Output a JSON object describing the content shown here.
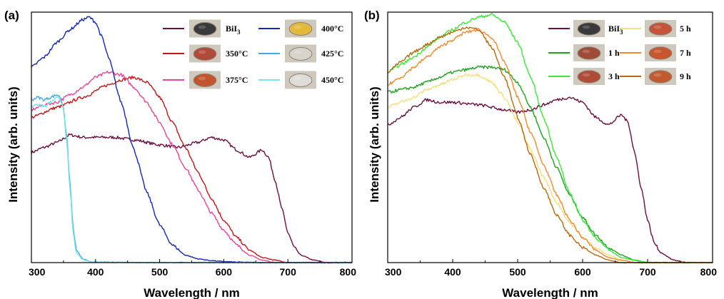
{
  "chart_data": [
    {
      "panel_label": "(a)",
      "type": "line",
      "xlabel": "Wavelength / nm",
      "ylabel": "Intensity (arb. units)",
      "xlim": [
        300,
        800
      ],
      "ylim": [
        0,
        1.0
      ],
      "xticks": [
        300,
        400,
        500,
        600,
        700,
        800
      ],
      "legend_placement": "top-right",
      "series": [
        {
          "name": "BiI3",
          "label_main": "BiI",
          "label_sub": "3",
          "color": "#6a1040",
          "swatch": "#3a3a3a",
          "x": [
            300,
            320,
            340,
            360,
            380,
            400,
            430,
            460,
            500,
            530,
            560,
            580,
            600,
            620,
            640,
            660,
            670,
            680,
            690,
            700,
            710,
            720,
            740,
            760,
            780,
            800
          ],
          "y": [
            0.44,
            0.46,
            0.48,
            0.51,
            0.5,
            0.5,
            0.5,
            0.49,
            0.47,
            0.46,
            0.48,
            0.5,
            0.49,
            0.45,
            0.42,
            0.45,
            0.42,
            0.33,
            0.22,
            0.12,
            0.06,
            0.03,
            0.01,
            0.0,
            0.0,
            0.0
          ]
        },
        {
          "name": "350°C",
          "color": "#c01818",
          "swatch": "#b04a3a",
          "x": [
            300,
            340,
            380,
            420,
            440,
            460,
            480,
            500,
            520,
            540,
            560,
            580,
            600,
            620,
            640,
            660,
            680,
            700,
            740,
            800
          ],
          "y": [
            0.58,
            0.62,
            0.66,
            0.71,
            0.73,
            0.74,
            0.72,
            0.66,
            0.56,
            0.46,
            0.36,
            0.26,
            0.17,
            0.1,
            0.05,
            0.02,
            0.01,
            0.0,
            0.0,
            0.0
          ]
        },
        {
          "name": "375°C",
          "color": "#e8469a",
          "swatch": "#c2542e",
          "x": [
            300,
            320,
            340,
            360,
            380,
            400,
            420,
            440,
            460,
            480,
            500,
            520,
            540,
            560,
            580,
            600,
            620,
            640,
            660,
            680,
            700,
            740,
            800
          ],
          "y": [
            0.61,
            0.63,
            0.64,
            0.67,
            0.7,
            0.74,
            0.76,
            0.75,
            0.7,
            0.64,
            0.56,
            0.47,
            0.38,
            0.29,
            0.2,
            0.13,
            0.07,
            0.03,
            0.01,
            0.0,
            0.0,
            0.0,
            0.0
          ]
        },
        {
          "name": "400°C",
          "color": "#1428b0",
          "swatch": "#e3b93a",
          "x": [
            300,
            320,
            340,
            360,
            380,
            390,
            400,
            410,
            420,
            440,
            460,
            480,
            500,
            520,
            540,
            560,
            580,
            600,
            620,
            640,
            660,
            700,
            800
          ],
          "y": [
            0.78,
            0.82,
            0.88,
            0.93,
            0.97,
            0.98,
            0.96,
            0.9,
            0.82,
            0.64,
            0.45,
            0.28,
            0.15,
            0.07,
            0.03,
            0.015,
            0.008,
            0.004,
            0.002,
            0.001,
            0.0,
            0.0,
            0.0
          ]
        },
        {
          "name": "425°C",
          "color": "#4aa8e8",
          "swatch": "#d8d4cc",
          "x": [
            300,
            310,
            320,
            330,
            340,
            345,
            350,
            355,
            360,
            365,
            370,
            380,
            390,
            400,
            500,
            600,
            700,
            800
          ],
          "y": [
            0.65,
            0.66,
            0.65,
            0.66,
            0.67,
            0.66,
            0.62,
            0.5,
            0.32,
            0.14,
            0.05,
            0.015,
            0.005,
            0.002,
            0.0,
            0.0,
            0.0,
            0.0
          ]
        },
        {
          "name": "450°C",
          "color": "#7ae6f0",
          "swatch": "#e0ddd8",
          "x": [
            300,
            310,
            320,
            330,
            340,
            345,
            350,
            355,
            360,
            365,
            370,
            380,
            390,
            400,
            500,
            600,
            700,
            800
          ],
          "y": [
            0.62,
            0.63,
            0.62,
            0.64,
            0.66,
            0.65,
            0.61,
            0.48,
            0.3,
            0.12,
            0.04,
            0.012,
            0.004,
            0.001,
            0.0,
            0.0,
            0.0,
            0.0
          ]
        }
      ]
    },
    {
      "panel_label": "(b)",
      "type": "line",
      "xlabel": "Wavelength / nm",
      "ylabel": "Intensity (arb. units)",
      "xlim": [
        300,
        800
      ],
      "ylim": [
        0,
        1.0
      ],
      "xticks": [
        300,
        400,
        500,
        600,
        700,
        800
      ],
      "legend_placement": "top-right",
      "series": [
        {
          "name": "BiI3",
          "label_main": "BiI",
          "label_sub": "3",
          "color": "#6a1040",
          "swatch": "#3a3a3a",
          "x": [
            300,
            320,
            340,
            360,
            380,
            400,
            440,
            480,
            500,
            520,
            540,
            560,
            580,
            600,
            620,
            640,
            660,
            670,
            680,
            690,
            700,
            710,
            720,
            740,
            760,
            800
          ],
          "y": [
            0.55,
            0.58,
            0.62,
            0.65,
            0.64,
            0.64,
            0.63,
            0.61,
            0.6,
            0.61,
            0.63,
            0.65,
            0.66,
            0.64,
            0.58,
            0.55,
            0.59,
            0.56,
            0.44,
            0.3,
            0.17,
            0.08,
            0.04,
            0.01,
            0.0,
            0.0
          ]
        },
        {
          "name": "1 h",
          "color": "#22a022",
          "swatch": "#a04a3a",
          "x": [
            300,
            320,
            340,
            360,
            380,
            400,
            420,
            440,
            460,
            480,
            500,
            520,
            540,
            560,
            580,
            600,
            620,
            640,
            660,
            680,
            700,
            740,
            800
          ],
          "y": [
            0.68,
            0.69,
            0.7,
            0.72,
            0.74,
            0.76,
            0.77,
            0.78,
            0.78,
            0.77,
            0.72,
            0.62,
            0.5,
            0.38,
            0.27,
            0.18,
            0.11,
            0.06,
            0.03,
            0.01,
            0.0,
            0.0,
            0.0
          ]
        },
        {
          "name": "3 h",
          "color": "#3ae83a",
          "swatch": "#b24a38",
          "x": [
            300,
            320,
            340,
            360,
            380,
            400,
            420,
            440,
            460,
            480,
            500,
            520,
            540,
            560,
            580,
            600,
            620,
            640,
            660,
            680,
            700,
            740,
            800
          ],
          "y": [
            0.76,
            0.79,
            0.82,
            0.86,
            0.9,
            0.93,
            0.96,
            0.98,
            0.99,
            0.96,
            0.88,
            0.74,
            0.58,
            0.42,
            0.28,
            0.17,
            0.1,
            0.05,
            0.02,
            0.01,
            0.0,
            0.0,
            0.0
          ]
        },
        {
          "name": "5 h",
          "color": "#f2e080",
          "swatch": "#c4543a",
          "x": [
            300,
            320,
            340,
            360,
            380,
            400,
            420,
            440,
            460,
            480,
            500,
            520,
            540,
            560,
            580,
            600,
            620,
            640,
            660,
            680,
            700,
            740,
            800
          ],
          "y": [
            0.62,
            0.64,
            0.66,
            0.69,
            0.71,
            0.73,
            0.75,
            0.75,
            0.72,
            0.66,
            0.56,
            0.45,
            0.34,
            0.24,
            0.16,
            0.1,
            0.06,
            0.03,
            0.01,
            0.0,
            0.0,
            0.0,
            0.0
          ]
        },
        {
          "name": "7 h",
          "color": "#f08a30",
          "swatch": "#c8562e",
          "x": [
            300,
            320,
            340,
            360,
            380,
            400,
            420,
            440,
            460,
            480,
            500,
            520,
            540,
            560,
            580,
            600,
            620,
            640,
            660,
            680,
            700,
            740,
            800
          ],
          "y": [
            0.71,
            0.74,
            0.78,
            0.82,
            0.86,
            0.89,
            0.92,
            0.93,
            0.9,
            0.8,
            0.66,
            0.52,
            0.39,
            0.27,
            0.17,
            0.1,
            0.05,
            0.02,
            0.01,
            0.0,
            0.0,
            0.0,
            0.0
          ]
        },
        {
          "name": "9 h",
          "color": "#b86a10",
          "swatch": "#c25a30",
          "x": [
            300,
            320,
            340,
            360,
            380,
            400,
            420,
            440,
            460,
            480,
            500,
            520,
            540,
            560,
            580,
            600,
            620,
            640,
            660,
            680,
            700,
            740,
            800
          ],
          "y": [
            0.76,
            0.8,
            0.84,
            0.87,
            0.9,
            0.92,
            0.94,
            0.93,
            0.86,
            0.74,
            0.58,
            0.43,
            0.3,
            0.19,
            0.11,
            0.06,
            0.03,
            0.01,
            0.0,
            0.0,
            0.0,
            0.0,
            0.0
          ]
        }
      ]
    }
  ]
}
